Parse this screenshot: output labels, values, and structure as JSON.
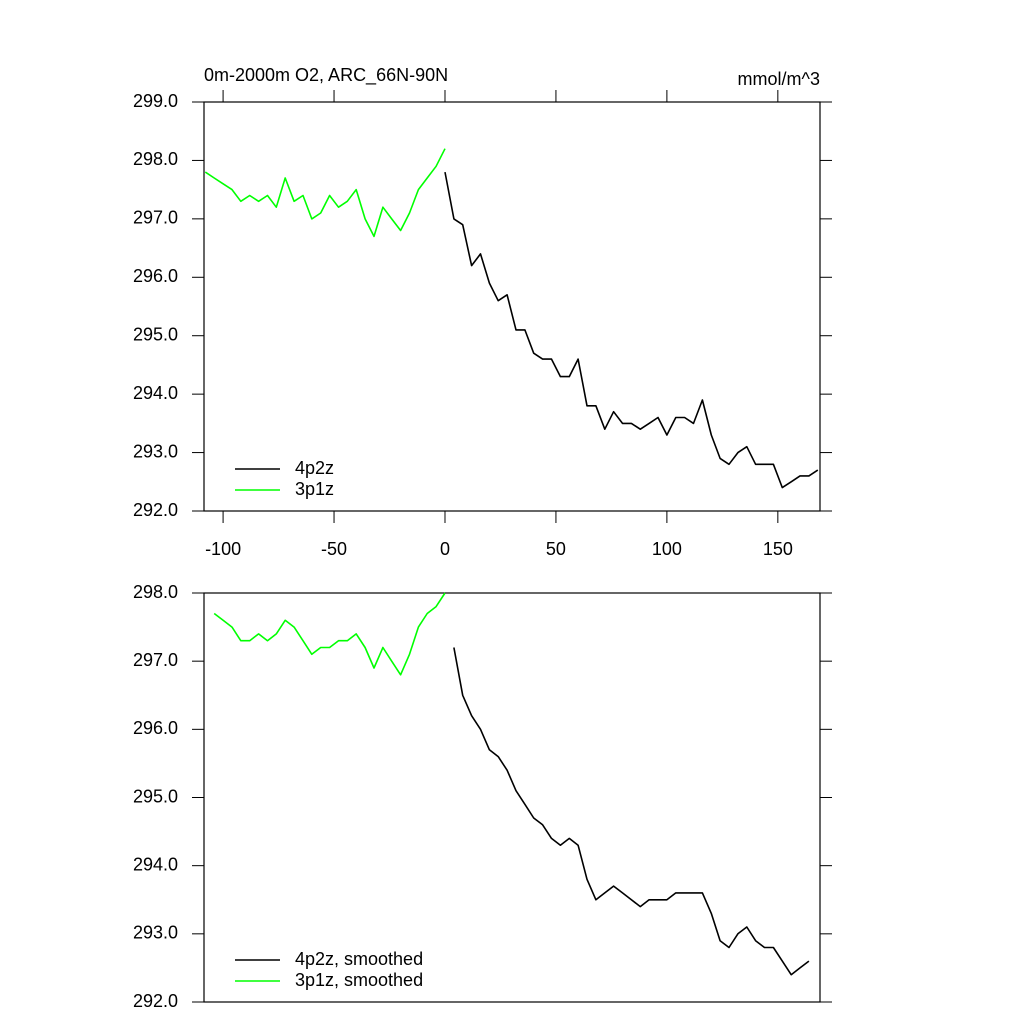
{
  "chart_data": [
    {
      "type": "line",
      "title": "0m-2000m O2, ARC_66N-90N",
      "subtitle": "mmol/m^3",
      "x": [
        -108,
        -104,
        -100,
        -96,
        -92,
        -88,
        -84,
        -80,
        -76,
        -72,
        -68,
        -64,
        -60,
        -56,
        -52,
        -48,
        -44,
        -40,
        -36,
        -32,
        -28,
        -24,
        -20,
        -16,
        -12,
        -8,
        -4,
        0,
        4,
        8,
        12,
        16,
        20,
        24,
        28,
        32,
        36,
        40,
        44,
        48,
        52,
        56,
        60,
        64,
        68,
        72,
        76,
        80,
        84,
        88,
        92,
        96,
        100,
        104,
        108,
        112,
        116,
        120,
        124,
        128,
        132,
        136,
        140,
        144,
        148,
        152,
        156,
        160,
        164,
        168
      ],
      "series": [
        {
          "name": "4p2z",
          "color": "#000000",
          "values": [
            null,
            null,
            null,
            null,
            null,
            null,
            null,
            null,
            null,
            null,
            null,
            null,
            null,
            null,
            null,
            null,
            null,
            null,
            null,
            null,
            null,
            null,
            null,
            null,
            null,
            null,
            null,
            297.8,
            297.0,
            296.9,
            296.2,
            296.4,
            295.9,
            295.6,
            295.7,
            295.1,
            295.1,
            294.7,
            294.6,
            294.6,
            294.3,
            294.3,
            294.6,
            293.8,
            293.8,
            293.4,
            293.7,
            293.5,
            293.5,
            293.4,
            293.5,
            293.6,
            293.3,
            293.6,
            293.6,
            293.5,
            293.9,
            293.3,
            292.9,
            292.8,
            293.0,
            293.1,
            292.8,
            292.8,
            292.8,
            292.4,
            292.5,
            292.6,
            292.6,
            292.7
          ]
        },
        {
          "name": "3p1z",
          "color": "#00ff00",
          "values": [
            297.8,
            297.7,
            297.6,
            297.5,
            297.3,
            297.4,
            297.3,
            297.4,
            297.2,
            297.7,
            297.3,
            297.4,
            297.0,
            297.1,
            297.4,
            297.2,
            297.3,
            297.5,
            297.0,
            296.7,
            297.2,
            297.0,
            296.8,
            297.1,
            297.5,
            297.7,
            297.9,
            298.2,
            null,
            null,
            null,
            null,
            null,
            null,
            null,
            null,
            null,
            null,
            null,
            null,
            null,
            null,
            null,
            null,
            null,
            null,
            null,
            null,
            null,
            null,
            null,
            null,
            null,
            null,
            null,
            null,
            null,
            null,
            null,
            null,
            null,
            null,
            null,
            null,
            null,
            null,
            null,
            null,
            null,
            null
          ]
        }
      ],
      "xlim": [
        -108.6,
        169
      ],
      "xticks": [
        -100,
        -50,
        0,
        50,
        100,
        150
      ],
      "ylim": [
        292,
        299
      ],
      "yticks": [
        {
          "value": 292,
          "label": "292.0"
        },
        {
          "value": 293,
          "label": "293.0"
        },
        {
          "value": 294,
          "label": "294.0"
        },
        {
          "value": 295,
          "label": "295.0"
        },
        {
          "value": 296,
          "label": "296.0"
        },
        {
          "value": 297,
          "label": "297.0"
        },
        {
          "value": 298,
          "label": "298.0"
        },
        {
          "value": 299,
          "label": "299.0"
        }
      ],
      "legend": "lower left"
    },
    {
      "type": "line",
      "x": [
        -108,
        -104,
        -100,
        -96,
        -92,
        -88,
        -84,
        -80,
        -76,
        -72,
        -68,
        -64,
        -60,
        -56,
        -52,
        -48,
        -44,
        -40,
        -36,
        -32,
        -28,
        -24,
        -20,
        -16,
        -12,
        -8,
        -4,
        0,
        4,
        8,
        12,
        16,
        20,
        24,
        28,
        32,
        36,
        40,
        44,
        48,
        52,
        56,
        60,
        64,
        68,
        72,
        76,
        80,
        84,
        88,
        92,
        96,
        100,
        104,
        108,
        112,
        116,
        120,
        124,
        128,
        132,
        136,
        140,
        144,
        148,
        152,
        156,
        160,
        164,
        168
      ],
      "series": [
        {
          "name": "4p2z, smoothed",
          "color": "#000000",
          "values": [
            null,
            null,
            null,
            null,
            null,
            null,
            null,
            null,
            null,
            null,
            null,
            null,
            null,
            null,
            null,
            null,
            null,
            null,
            null,
            null,
            null,
            null,
            null,
            null,
            null,
            null,
            null,
            null,
            297.2,
            296.5,
            296.2,
            296.0,
            295.7,
            295.6,
            295.4,
            295.1,
            294.9,
            294.7,
            294.6,
            294.4,
            294.3,
            294.4,
            294.3,
            293.8,
            293.5,
            293.6,
            293.7,
            293.6,
            293.5,
            293.4,
            293.5,
            293.5,
            293.5,
            293.6,
            293.6,
            293.6,
            293.6,
            293.3,
            292.9,
            292.8,
            293.0,
            293.1,
            292.9,
            292.8,
            292.8,
            292.6,
            292.4,
            292.5,
            292.6,
            null
          ]
        },
        {
          "name": "3p1z, smoothed",
          "color": "#00ff00",
          "values": [
            null,
            297.7,
            297.6,
            297.5,
            297.3,
            297.3,
            297.4,
            297.3,
            297.4,
            297.6,
            297.5,
            297.3,
            297.1,
            297.2,
            297.2,
            297.3,
            297.3,
            297.4,
            297.2,
            296.9,
            297.2,
            297.0,
            296.8,
            297.1,
            297.5,
            297.7,
            297.8,
            298.0,
            null,
            null,
            null,
            null,
            null,
            null,
            null,
            null,
            null,
            null,
            null,
            null,
            null,
            null,
            null,
            null,
            null,
            null,
            null,
            null,
            null,
            null,
            null,
            null,
            null,
            null,
            null,
            null,
            null,
            null,
            null,
            null,
            null,
            null,
            null,
            null,
            null,
            null,
            null,
            null,
            null,
            null
          ]
        }
      ],
      "xlim": [
        -108.6,
        169
      ],
      "ylim": [
        292,
        298
      ],
      "yticks": [
        {
          "value": 292,
          "label": "292.0"
        },
        {
          "value": 293,
          "label": "293.0"
        },
        {
          "value": 294,
          "label": "294.0"
        },
        {
          "value": 295,
          "label": "295.0"
        },
        {
          "value": 296,
          "label": "296.0"
        },
        {
          "value": 297,
          "label": "297.0"
        },
        {
          "value": 298,
          "label": "298.0"
        }
      ],
      "legend": "lower left"
    }
  ]
}
